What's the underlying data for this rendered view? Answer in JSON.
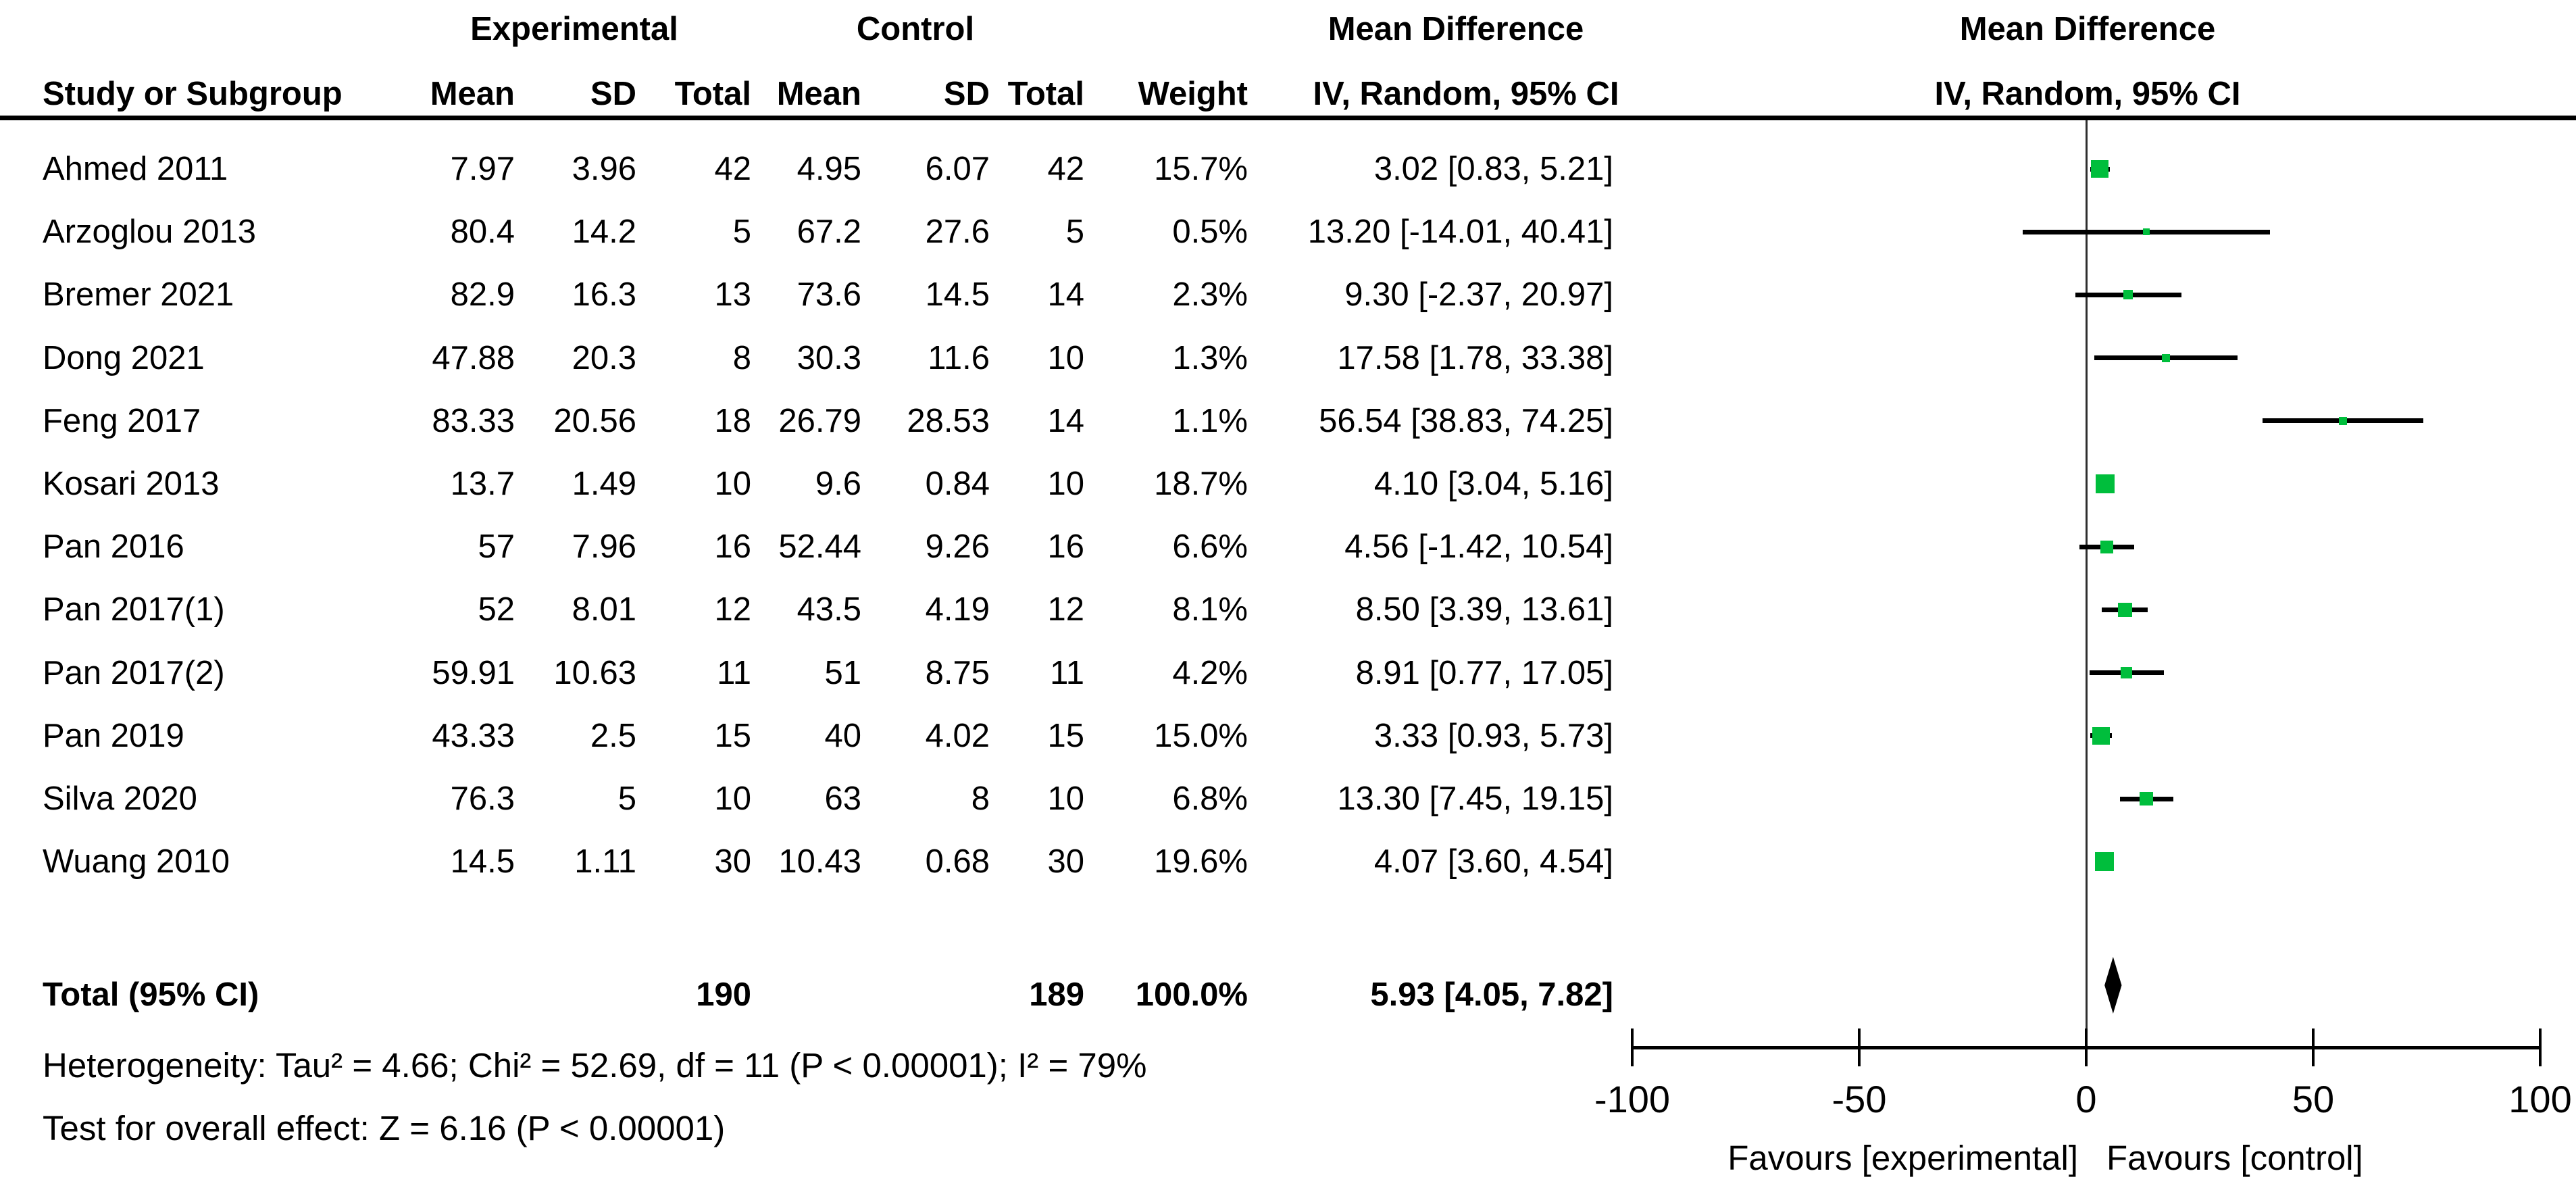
{
  "chart_data": {
    "type": "forest",
    "effect_measure": "Mean Difference",
    "header": {
      "group_experimental": "Experimental",
      "group_control": "Control",
      "effect_col_title": "Mean Difference",
      "plot_col_title": "Mean Difference",
      "study": "Study or Subgroup",
      "mean": "Mean",
      "sd": "SD",
      "total": "Total",
      "weight": "Weight",
      "method": "IV, Random, 95% CI",
      "plot_method": "IV, Random, 95% CI"
    },
    "studies": [
      {
        "name": "Ahmed 2011",
        "exp_mean": "7.97",
        "exp_sd": "3.96",
        "exp_total": "42",
        "ctrl_mean": "4.95",
        "ctrl_sd": "6.07",
        "ctrl_total": "42",
        "weight": "15.7%",
        "ci_text": "3.02 [0.83, 5.21]",
        "md": 3.02,
        "lo": 0.83,
        "hi": 5.21,
        "w": 15.7
      },
      {
        "name": "Arzoglou 2013",
        "exp_mean": "80.4",
        "exp_sd": "14.2",
        "exp_total": "5",
        "ctrl_mean": "67.2",
        "ctrl_sd": "27.6",
        "ctrl_total": "5",
        "weight": "0.5%",
        "ci_text": "13.20 [-14.01, 40.41]",
        "md": 13.2,
        "lo": -14.01,
        "hi": 40.41,
        "w": 0.5
      },
      {
        "name": "Bremer 2021",
        "exp_mean": "82.9",
        "exp_sd": "16.3",
        "exp_total": "13",
        "ctrl_mean": "73.6",
        "ctrl_sd": "14.5",
        "ctrl_total": "14",
        "weight": "2.3%",
        "ci_text": "9.30 [-2.37, 20.97]",
        "md": 9.3,
        "lo": -2.37,
        "hi": 20.97,
        "w": 2.3
      },
      {
        "name": "Dong 2021",
        "exp_mean": "47.88",
        "exp_sd": "20.3",
        "exp_total": "8",
        "ctrl_mean": "30.3",
        "ctrl_sd": "11.6",
        "ctrl_total": "10",
        "weight": "1.3%",
        "ci_text": "17.58 [1.78, 33.38]",
        "md": 17.58,
        "lo": 1.78,
        "hi": 33.38,
        "w": 1.3
      },
      {
        "name": "Feng 2017",
        "exp_mean": "83.33",
        "exp_sd": "20.56",
        "exp_total": "18",
        "ctrl_mean": "26.79",
        "ctrl_sd": "28.53",
        "ctrl_total": "14",
        "weight": "1.1%",
        "ci_text": "56.54 [38.83, 74.25]",
        "md": 56.54,
        "lo": 38.83,
        "hi": 74.25,
        "w": 1.1
      },
      {
        "name": "Kosari 2013",
        "exp_mean": "13.7",
        "exp_sd": "1.49",
        "exp_total": "10",
        "ctrl_mean": "9.6",
        "ctrl_sd": "0.84",
        "ctrl_total": "10",
        "weight": "18.7%",
        "ci_text": "4.10 [3.04, 5.16]",
        "md": 4.1,
        "lo": 3.04,
        "hi": 5.16,
        "w": 18.7
      },
      {
        "name": "Pan 2016",
        "exp_mean": "57",
        "exp_sd": "7.96",
        "exp_total": "16",
        "ctrl_mean": "52.44",
        "ctrl_sd": "9.26",
        "ctrl_total": "16",
        "weight": "6.6%",
        "ci_text": "4.56 [-1.42, 10.54]",
        "md": 4.56,
        "lo": -1.42,
        "hi": 10.54,
        "w": 6.6
      },
      {
        "name": "Pan 2017(1)",
        "exp_mean": "52",
        "exp_sd": "8.01",
        "exp_total": "12",
        "ctrl_mean": "43.5",
        "ctrl_sd": "4.19",
        "ctrl_total": "12",
        "weight": "8.1%",
        "ci_text": "8.50 [3.39, 13.61]",
        "md": 8.5,
        "lo": 3.39,
        "hi": 13.61,
        "w": 8.1
      },
      {
        "name": "Pan 2017(2)",
        "exp_mean": "59.91",
        "exp_sd": "10.63",
        "exp_total": "11",
        "ctrl_mean": "51",
        "ctrl_sd": "8.75",
        "ctrl_total": "11",
        "weight": "4.2%",
        "ci_text": "8.91 [0.77, 17.05]",
        "md": 8.91,
        "lo": 0.77,
        "hi": 17.05,
        "w": 4.2
      },
      {
        "name": "Pan 2019",
        "exp_mean": "43.33",
        "exp_sd": "2.5",
        "exp_total": "15",
        "ctrl_mean": "40",
        "ctrl_sd": "4.02",
        "ctrl_total": "15",
        "weight": "15.0%",
        "ci_text": "3.33 [0.93, 5.73]",
        "md": 3.33,
        "lo": 0.93,
        "hi": 5.73,
        "w": 15.0
      },
      {
        "name": "Silva 2020",
        "exp_mean": "76.3",
        "exp_sd": "5",
        "exp_total": "10",
        "ctrl_mean": "63",
        "ctrl_sd": "8",
        "ctrl_total": "10",
        "weight": "6.8%",
        "ci_text": "13.30 [7.45, 19.15]",
        "md": 13.3,
        "lo": 7.45,
        "hi": 19.15,
        "w": 6.8
      },
      {
        "name": "Wuang 2010",
        "exp_mean": "14.5",
        "exp_sd": "1.11",
        "exp_total": "30",
        "ctrl_mean": "10.43",
        "ctrl_sd": "0.68",
        "ctrl_total": "30",
        "weight": "19.6%",
        "ci_text": "4.07 [3.60, 4.54]",
        "md": 4.07,
        "lo": 3.6,
        "hi": 4.54,
        "w": 19.6
      }
    ],
    "total": {
      "label": "Total (95% CI)",
      "exp_total": "190",
      "ctrl_total": "189",
      "weight": "100.0%",
      "ci_text": "5.93 [4.05, 7.82]",
      "md": 5.93,
      "lo": 4.05,
      "hi": 7.82
    },
    "heterogeneity": "Heterogeneity: Tau² = 4.66; Chi² = 52.69, df = 11 (P < 0.00001); I² = 79%",
    "overall_effect": "Test for overall effect: Z = 6.16 (P < 0.00001)",
    "axis": {
      "xlim": [
        -100,
        100
      ],
      "ticks": [
        -100,
        -50,
        0,
        50,
        100
      ],
      "tick_labels": [
        "-100",
        "-50",
        "0",
        "50",
        "100"
      ],
      "favours_left": "Favours [experimental]",
      "favours_right": "Favours [control]"
    },
    "colors": {
      "marker_green": "#00BE3C",
      "line_black": "#000000",
      "axis_gray": "#2e2e2e"
    }
  }
}
